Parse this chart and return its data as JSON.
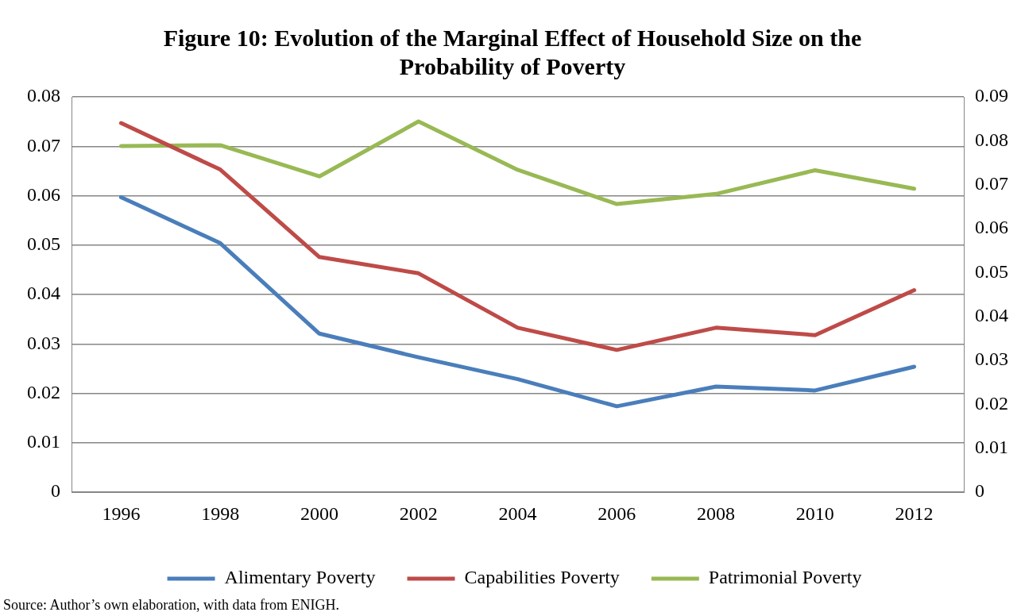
{
  "chart_data": {
    "type": "line",
    "title": "Figure 10: Evolution of the Marginal Effect of Household Size on the Probability of Poverty",
    "categories": [
      "1996",
      "1998",
      "2000",
      "2002",
      "2004",
      "2006",
      "2008",
      "2010",
      "2012"
    ],
    "series": [
      {
        "name": "Alimentary Poverty",
        "color": "#4a7ebb",
        "values": [
          0.0597,
          0.0504,
          0.0321,
          0.0273,
          0.0229,
          0.0174,
          0.0214,
          0.0206,
          0.0254
        ]
      },
      {
        "name": "Capabilities Poverty",
        "color": "#be4b48",
        "values": [
          0.0747,
          0.0653,
          0.0476,
          0.0443,
          0.0333,
          0.0288,
          0.0333,
          0.0318,
          0.0409
        ]
      },
      {
        "name": "Patrimonial Poverty",
        "color": "#98b954",
        "axis": "y2",
        "values": [
          0.0788,
          0.079,
          0.0719,
          0.0844,
          0.0734,
          0.0656,
          0.0679,
          0.0733,
          0.0691
        ]
      }
    ],
    "ylim": [
      0,
      0.08
    ],
    "yticks": [
      0,
      0.01,
      0.02,
      0.03,
      0.04,
      0.05,
      0.06,
      0.07,
      0.08
    ],
    "y2lim": [
      0,
      0.09
    ],
    "y2ticks": [
      0,
      0.01,
      0.02,
      0.03,
      0.04,
      0.05,
      0.06,
      0.07,
      0.08,
      0.09
    ],
    "grid": "y",
    "legend": "bottom",
    "marker": "none",
    "line_style": "solid",
    "annotations": [
      "Source: Author’s own elaboration, with data from ENIGH."
    ]
  }
}
